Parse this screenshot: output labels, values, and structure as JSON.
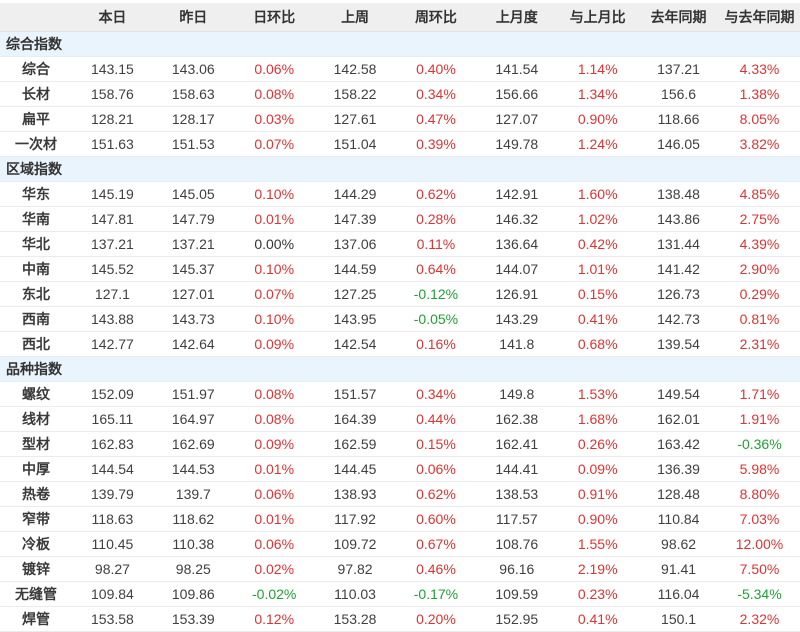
{
  "colors": {
    "positive": "#dd3333",
    "negative": "#21a038",
    "neutral": "#333333",
    "header_bg": "#efefef",
    "section_bg": "#eaf4fc"
  },
  "table": {
    "columns": [
      "",
      "本日",
      "昨日",
      "日环比",
      "上周",
      "周环比",
      "上月度",
      "与上月比",
      "去年同期",
      "与去年同期"
    ],
    "sections": [
      {
        "title": "综合指数",
        "rows": [
          {
            "label": "综合",
            "values": [
              "143.15",
              "143.06",
              "0.06%",
              "142.58",
              "0.40%",
              "141.54",
              "1.14%",
              "137.21",
              "4.33%"
            ]
          },
          {
            "label": "长材",
            "values": [
              "158.76",
              "158.63",
              "0.08%",
              "158.22",
              "0.34%",
              "156.66",
              "1.34%",
              "156.6",
              "1.38%"
            ]
          },
          {
            "label": "扁平",
            "values": [
              "128.21",
              "128.17",
              "0.03%",
              "127.61",
              "0.47%",
              "127.07",
              "0.90%",
              "118.66",
              "8.05%"
            ]
          },
          {
            "label": "一次材",
            "values": [
              "151.63",
              "151.53",
              "0.07%",
              "151.04",
              "0.39%",
              "149.78",
              "1.24%",
              "146.05",
              "3.82%"
            ]
          }
        ]
      },
      {
        "title": "区域指数",
        "rows": [
          {
            "label": "华东",
            "values": [
              "145.19",
              "145.05",
              "0.10%",
              "144.29",
              "0.62%",
              "142.91",
              "1.60%",
              "138.48",
              "4.85%"
            ]
          },
          {
            "label": "华南",
            "values": [
              "147.81",
              "147.79",
              "0.01%",
              "147.39",
              "0.28%",
              "146.32",
              "1.02%",
              "143.86",
              "2.75%"
            ]
          },
          {
            "label": "华北",
            "values": [
              "137.21",
              "137.21",
              "0.00%",
              "137.06",
              "0.11%",
              "136.64",
              "0.42%",
              "131.44",
              "4.39%"
            ]
          },
          {
            "label": "中南",
            "values": [
              "145.52",
              "145.37",
              "0.10%",
              "144.59",
              "0.64%",
              "144.07",
              "1.01%",
              "141.42",
              "2.90%"
            ]
          },
          {
            "label": "东北",
            "values": [
              "127.1",
              "127.01",
              "0.07%",
              "127.25",
              "-0.12%",
              "126.91",
              "0.15%",
              "126.73",
              "0.29%"
            ]
          },
          {
            "label": "西南",
            "values": [
              "143.88",
              "143.73",
              "0.10%",
              "143.95",
              "-0.05%",
              "143.29",
              "0.41%",
              "142.73",
              "0.81%"
            ]
          },
          {
            "label": "西北",
            "values": [
              "142.77",
              "142.64",
              "0.09%",
              "142.54",
              "0.16%",
              "141.8",
              "0.68%",
              "139.54",
              "2.31%"
            ]
          }
        ]
      },
      {
        "title": "品种指数",
        "rows": [
          {
            "label": "螺纹",
            "values": [
              "152.09",
              "151.97",
              "0.08%",
              "151.57",
              "0.34%",
              "149.8",
              "1.53%",
              "149.54",
              "1.71%"
            ]
          },
          {
            "label": "线材",
            "values": [
              "165.11",
              "164.97",
              "0.08%",
              "164.39",
              "0.44%",
              "162.38",
              "1.68%",
              "162.01",
              "1.91%"
            ]
          },
          {
            "label": "型材",
            "values": [
              "162.83",
              "162.69",
              "0.09%",
              "162.59",
              "0.15%",
              "162.41",
              "0.26%",
              "163.42",
              "-0.36%"
            ]
          },
          {
            "label": "中厚",
            "values": [
              "144.54",
              "144.53",
              "0.01%",
              "144.45",
              "0.06%",
              "144.41",
              "0.09%",
              "136.39",
              "5.98%"
            ]
          },
          {
            "label": "热卷",
            "values": [
              "139.79",
              "139.7",
              "0.06%",
              "138.93",
              "0.62%",
              "138.53",
              "0.91%",
              "128.48",
              "8.80%"
            ]
          },
          {
            "label": "窄带",
            "values": [
              "118.63",
              "118.62",
              "0.01%",
              "117.92",
              "0.60%",
              "117.57",
              "0.90%",
              "110.84",
              "7.03%"
            ]
          },
          {
            "label": "冷板",
            "values": [
              "110.45",
              "110.38",
              "0.06%",
              "109.72",
              "0.67%",
              "108.76",
              "1.55%",
              "98.62",
              "12.00%"
            ]
          },
          {
            "label": "镀锌",
            "values": [
              "98.27",
              "98.25",
              "0.02%",
              "97.82",
              "0.46%",
              "96.16",
              "2.19%",
              "91.41",
              "7.50%"
            ]
          },
          {
            "label": "无缝管",
            "values": [
              "109.84",
              "109.86",
              "-0.02%",
              "110.03",
              "-0.17%",
              "109.59",
              "0.23%",
              "116.04",
              "-5.34%"
            ]
          },
          {
            "label": "焊管",
            "values": [
              "153.58",
              "153.39",
              "0.12%",
              "153.28",
              "0.20%",
              "152.95",
              "0.41%",
              "150.1",
              "2.32%"
            ]
          }
        ]
      }
    ]
  }
}
